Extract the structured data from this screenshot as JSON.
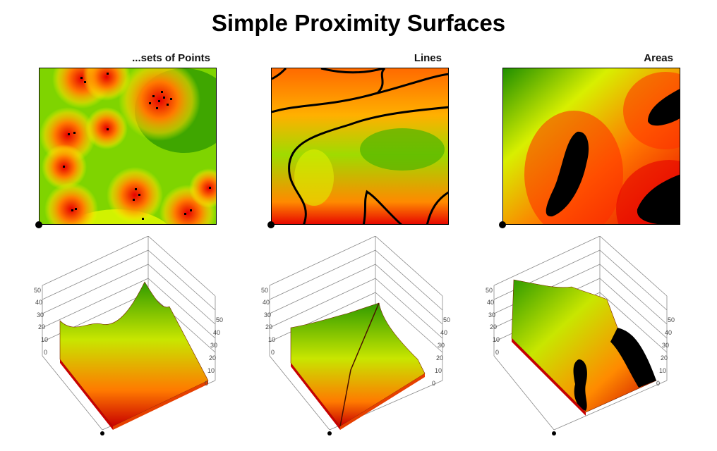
{
  "title": "Simple Proximity Surfaces",
  "panels": [
    {
      "label": "...sets of Points"
    },
    {
      "label": "Lines"
    },
    {
      "label": "Areas"
    }
  ],
  "axis": {
    "left_ticks": [
      "0",
      "10",
      "20",
      "30",
      "40",
      "50"
    ],
    "right_ticks": [
      "0",
      "10",
      "20",
      "30",
      "40",
      "50"
    ]
  },
  "colors": {
    "far": "#1f8f00",
    "mid": "#f4ff00",
    "near": "#e60000",
    "feature": "#000000"
  }
}
